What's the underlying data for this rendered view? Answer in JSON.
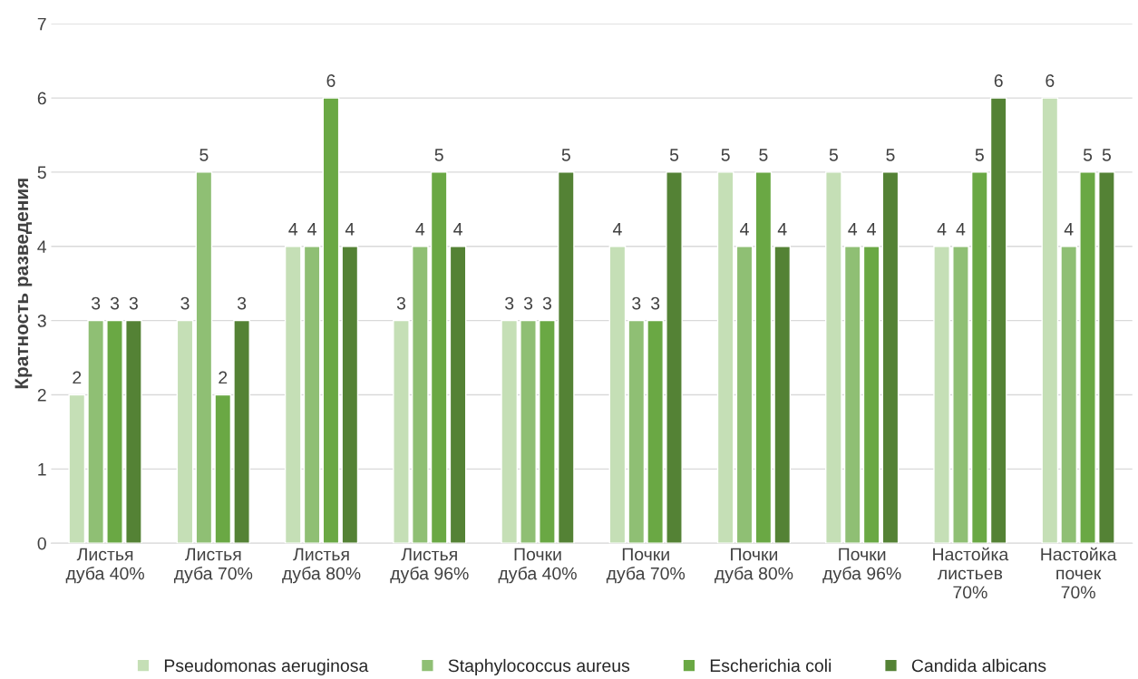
{
  "chart_data": {
    "type": "bar",
    "ylabel": "Кратность разведения",
    "categories": [
      "Листья\nдуба 40%",
      "Листья\nдуба 70%",
      "Листья\nдуба 80%",
      "Листья\nдуба 96%",
      "Почки\nдуба 40%",
      "Почки\nдуба 70%",
      "Почки\nдуба 80%",
      "Почки\nдуба 96%",
      "Настойка\nлистьев\n70%",
      "Настойка\nпочек\n70%"
    ],
    "series": [
      {
        "name": "Pseudomonas aeruginosa",
        "color": "#c5dfb6",
        "values": [
          2,
          3,
          4,
          3,
          3,
          4,
          5,
          5,
          4,
          6
        ]
      },
      {
        "name": "Staphylococcus aureus",
        "color": "#8fbf74",
        "values": [
          3,
          5,
          4,
          4,
          3,
          3,
          4,
          4,
          4,
          4
        ]
      },
      {
        "name": "Escherichia coli",
        "color": "#6aa844",
        "values": [
          3,
          2,
          6,
          5,
          3,
          3,
          5,
          4,
          5,
          5
        ]
      },
      {
        "name": "Candida albicans",
        "color": "#548235",
        "values": [
          3,
          3,
          4,
          4,
          5,
          5,
          4,
          5,
          6,
          5
        ]
      }
    ],
    "ylim": [
      0,
      7
    ],
    "yticks": [
      0,
      1,
      2,
      3,
      4,
      5,
      6,
      7
    ],
    "grid": "y",
    "legend": "bottom",
    "data_labels": true
  }
}
